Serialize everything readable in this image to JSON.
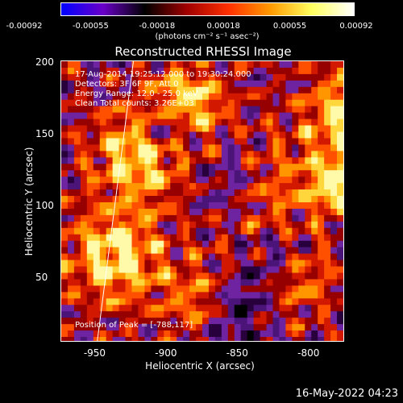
{
  "colorbar": {
    "ticks": [
      "-0.00092",
      "-0.00055",
      "-0.00018",
      "0.00018",
      "0.00055",
      "0.00092"
    ],
    "unit_label": "(photons cm⁻² s⁻¹ asec⁻²)",
    "colors": [
      "#0000ff",
      "#6a00c8",
      "#000000",
      "#a00000",
      "#ff3000",
      "#ff9a00",
      "#ffff60",
      "#ffffff"
    ]
  },
  "image": {
    "title": "Reconstructed RHESSI Image",
    "info_lines": [
      "17-Aug-2014 19:25:12.000 to 19:30:24.000",
      "Detectors: 3F 6F 9F, Att 0",
      "Energy Range: 12.0 - 25.0 keV",
      "Clean     Total counts: 3.26E+03"
    ],
    "peak_label": "Position of Peak = [-788,117]"
  },
  "axes": {
    "xlabel": "Heliocentric X (arcsec)",
    "ylabel": "Heliocentric Y (arcsec)",
    "xticks": [
      "-950",
      "-900",
      "-850",
      "-800"
    ],
    "xtick_values": [
      -950,
      -900,
      -850,
      -800
    ],
    "yticks": [
      "200",
      "150",
      "100",
      "50"
    ],
    "ytick_values": [
      200,
      150,
      100,
      50
    ],
    "xlim": [
      -974,
      -775
    ],
    "ylim": [
      5,
      201
    ]
  },
  "footer": {
    "date": "16-May-2022 04:23"
  }
}
